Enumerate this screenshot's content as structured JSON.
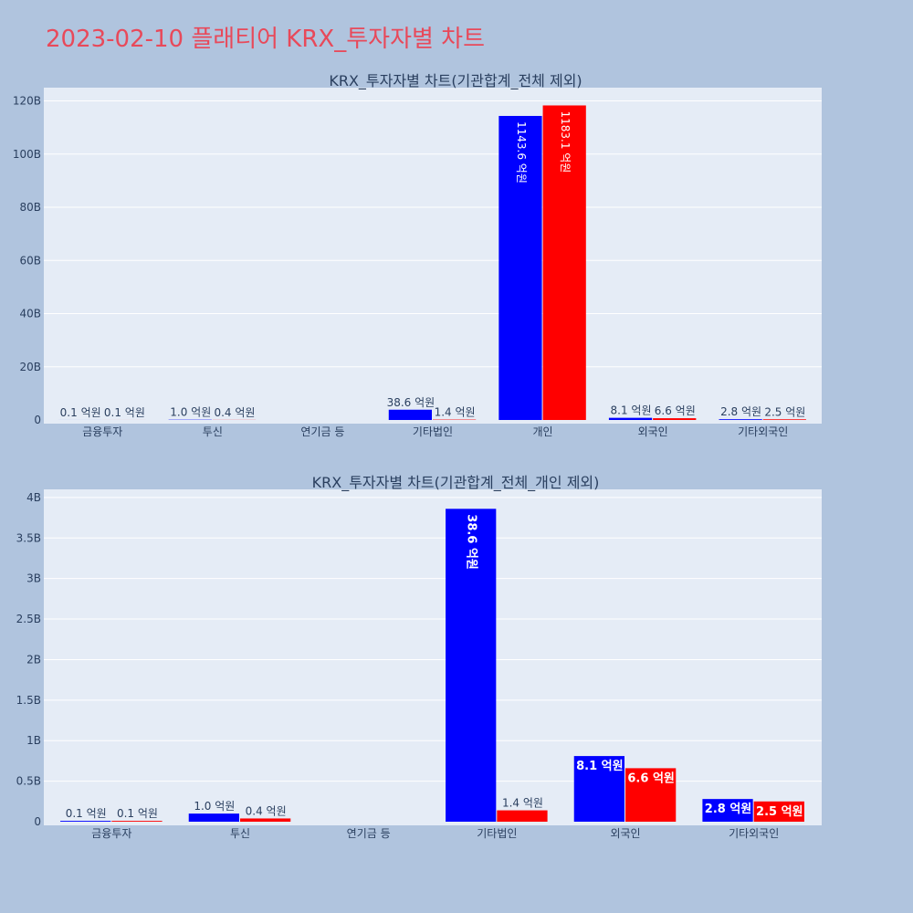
{
  "page_title": "2023-02-10 플래티어 KRX_투자자별 차트",
  "chart_data": [
    {
      "type": "bar",
      "title": "KRX_투자자별 차트(기관합계_전체 제외)",
      "categories": [
        "금융투자",
        "투신",
        "연기금 등",
        "기타법인",
        "개인",
        "외국인",
        "기타외국인"
      ],
      "series": [
        {
          "color": "#0000ff",
          "values": [
            10000000,
            100000000,
            0,
            3860000000,
            114360000000,
            810000000,
            280000000
          ],
          "labels": [
            "0.1 억원",
            "1.0 억원",
            "",
            "38.6 억원",
            "1143.6 억원",
            "8.1 억원",
            "2.8 억원"
          ]
        },
        {
          "color": "#ff0000",
          "values": [
            10000000,
            40000000,
            0,
            140000000,
            118310000000,
            660000000,
            250000000
          ],
          "labels": [
            "0.1 억원",
            "0.4 억원",
            "",
            "1.4 억원",
            "1183.1 억원",
            "6.6 억원",
            "2.5 억원"
          ]
        }
      ],
      "ylim": [
        0,
        125000000000
      ],
      "yticks": [
        0,
        20000000000,
        40000000000,
        60000000000,
        80000000000,
        100000000000,
        120000000000
      ],
      "yticklabels": [
        "0",
        "20B",
        "40B",
        "60B",
        "80B",
        "100B",
        "120B"
      ],
      "grid": true
    },
    {
      "type": "bar",
      "title": "KRX_투자자별 차트(기관합계_전체_개인 제외)",
      "categories": [
        "금융투자",
        "투신",
        "연기금 등",
        "기타법인",
        "외국인",
        "기타외국인"
      ],
      "series": [
        {
          "color": "#0000ff",
          "values": [
            10000000,
            100000000,
            0,
            3860000000,
            810000000,
            280000000
          ],
          "labels": [
            "0.1 억원",
            "1.0 억원",
            "",
            "38.6 억원",
            "8.1 억원",
            "2.8 억원"
          ]
        },
        {
          "color": "#ff0000",
          "values": [
            10000000,
            40000000,
            0,
            140000000,
            660000000,
            250000000
          ],
          "labels": [
            "0.1 억원",
            "0.4 억원",
            "",
            "1.4 억원",
            "6.6 억원",
            "2.5 억원"
          ]
        }
      ],
      "ylim": [
        0,
        4100000000
      ],
      "yticks": [
        0,
        500000000,
        1000000000,
        1500000000,
        2000000000,
        2500000000,
        3000000000,
        3500000000,
        4000000000
      ],
      "yticklabels": [
        "0",
        "0.5B",
        "1B",
        "1.5B",
        "2B",
        "2.5B",
        "3B",
        "3.5B",
        "4B"
      ],
      "grid": true
    }
  ]
}
